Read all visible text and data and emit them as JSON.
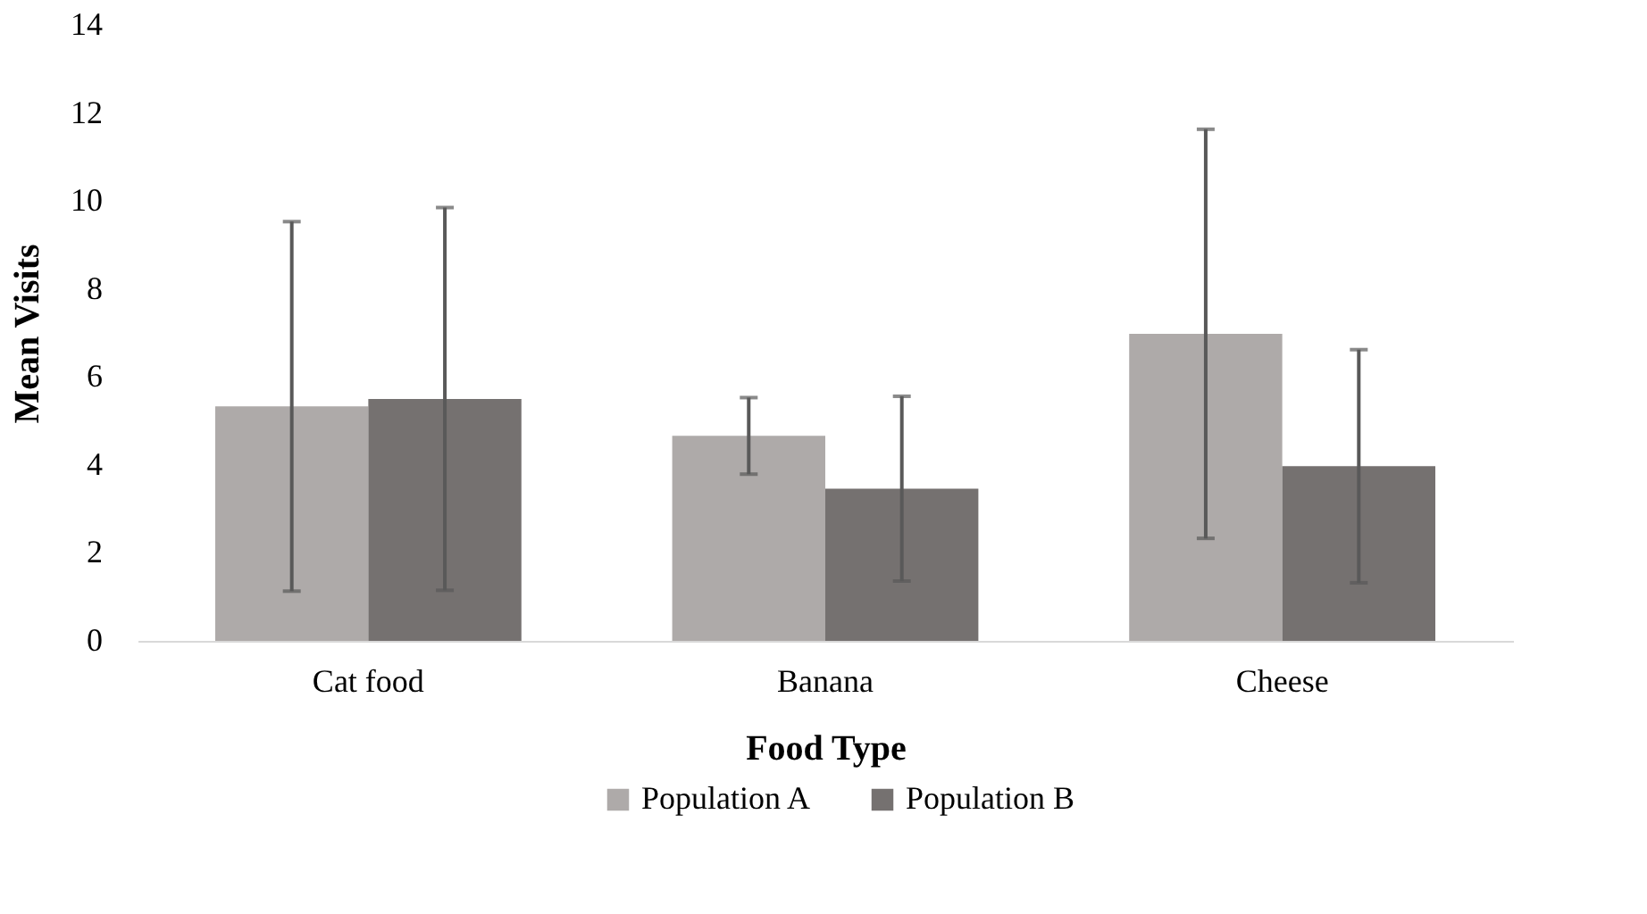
{
  "chart_data": {
    "type": "bar",
    "xlabel": "Food Type",
    "ylabel": "Mean Visits",
    "categories": [
      "Cat food",
      "Banana",
      "Cheese"
    ],
    "series": [
      {
        "name": "Population A",
        "color": "#aeaaa9",
        "values": [
          5.33,
          4.66,
          6.98
        ],
        "errors": [
          4.2,
          0.87,
          4.65
        ]
      },
      {
        "name": "Population B",
        "color": "#757170",
        "values": [
          5.5,
          3.46,
          3.97
        ],
        "errors": [
          4.35,
          2.1,
          2.65
        ]
      }
    ],
    "ylim": [
      0,
      14
    ],
    "yticks": [
      0,
      2,
      4,
      6,
      8,
      10,
      12,
      14
    ],
    "grid": false,
    "legend": "bottom"
  }
}
